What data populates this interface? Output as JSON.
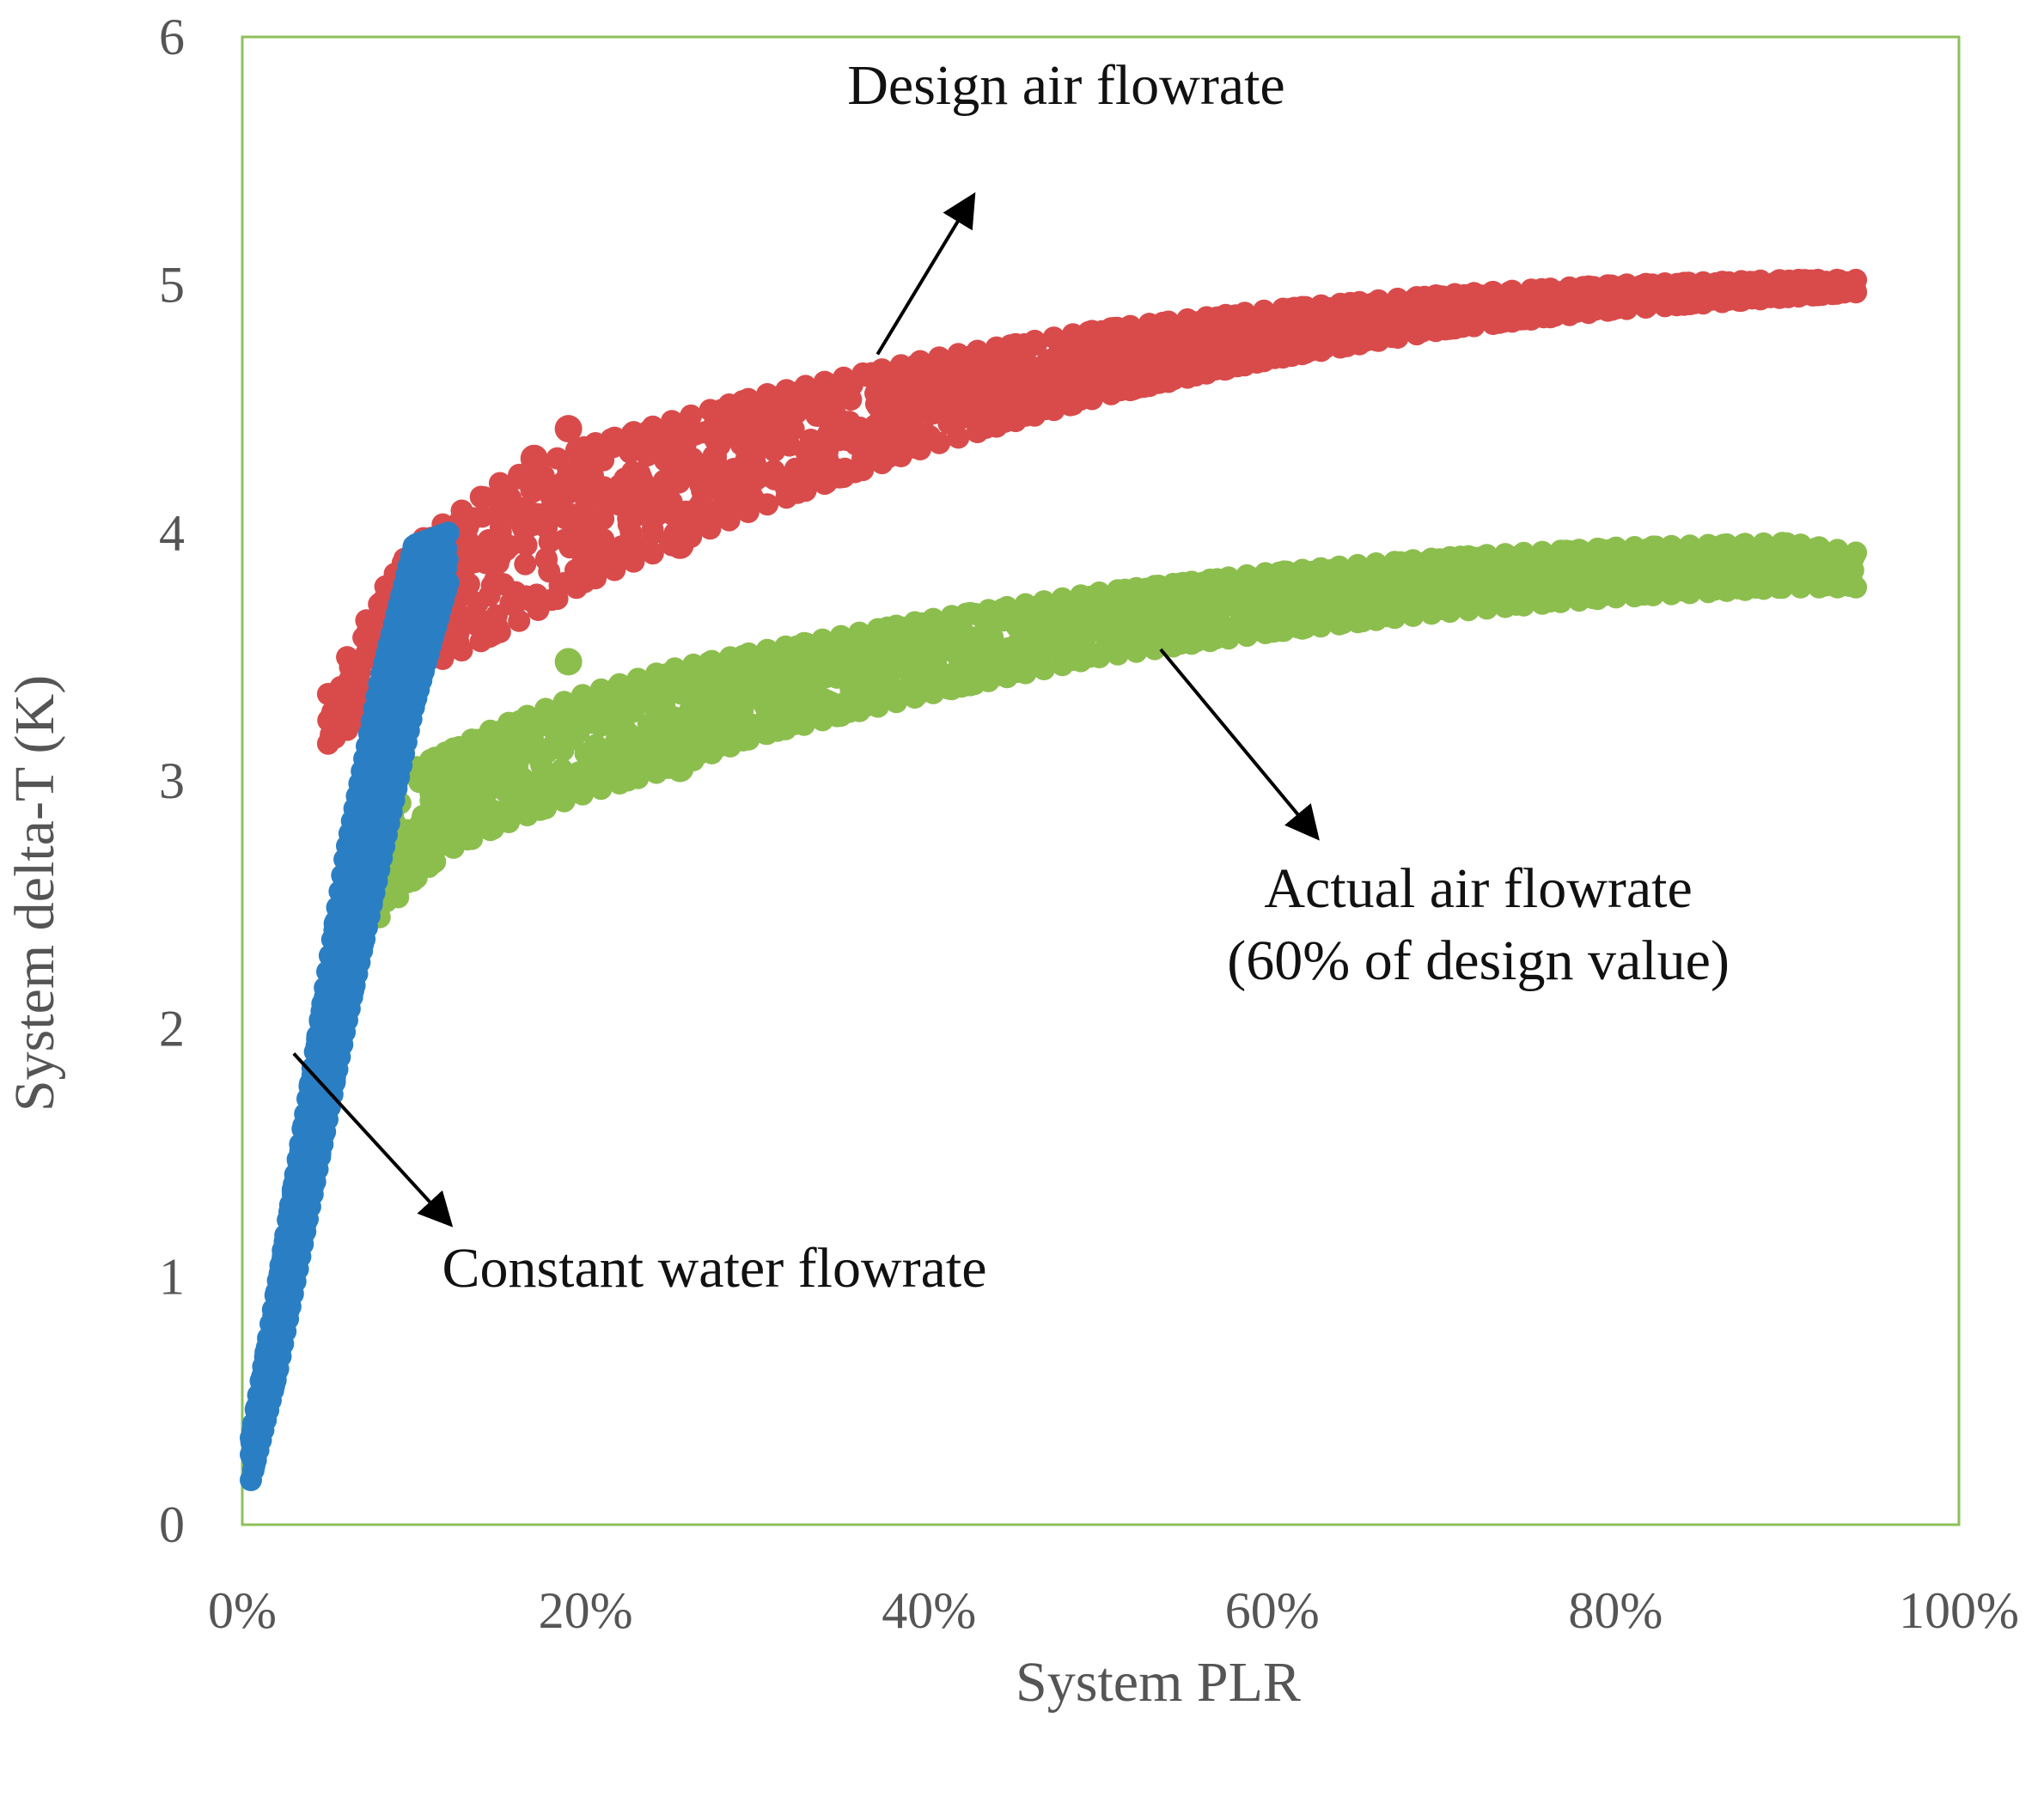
{
  "chart_data": {
    "type": "scatter",
    "title": "",
    "xlabel": "System PLR",
    "ylabel": "System delta-T (K)",
    "xlim": [
      0,
      1
    ],
    "ylim": [
      0,
      6
    ],
    "x_ticks": [
      0,
      0.2,
      0.4,
      0.6,
      0.8,
      1.0
    ],
    "x_tick_labels": [
      "0%",
      "20%",
      "40%",
      "60%",
      "80%",
      "100%"
    ],
    "y_ticks": [
      0,
      1,
      2,
      3,
      4,
      5,
      6
    ],
    "y_tick_labels": [
      "0",
      "1",
      "2",
      "3",
      "4",
      "5",
      "6"
    ],
    "plot_border_color": "#8dc05a",
    "series": [
      {
        "name": "Design air flowrate",
        "color": "#d94b4b",
        "band": {
          "x": [
            0.05,
            0.08,
            0.1,
            0.12,
            0.15,
            0.2,
            0.25,
            0.3,
            0.4,
            0.5,
            0.6,
            0.7,
            0.8,
            0.9,
            0.94
          ],
          "low": [
            3.15,
            3.3,
            3.45,
            3.5,
            3.6,
            3.8,
            3.95,
            4.1,
            4.35,
            4.55,
            4.7,
            4.82,
            4.9,
            4.95,
            4.97
          ],
          "high": [
            3.35,
            3.75,
            3.95,
            4.05,
            4.2,
            4.35,
            4.45,
            4.55,
            4.7,
            4.82,
            4.9,
            4.96,
            5.0,
            5.02,
            5.02
          ]
        },
        "outliers": [
          [
            0.19,
            4.42
          ],
          [
            0.255,
            3.95
          ],
          [
            0.17,
            4.3
          ]
        ]
      },
      {
        "name": "Actual air flowrate (60% of design value)",
        "color": "#8cbe4e",
        "band": {
          "x": [
            0.08,
            0.1,
            0.12,
            0.15,
            0.2,
            0.25,
            0.3,
            0.4,
            0.5,
            0.6,
            0.7,
            0.8,
            0.9,
            0.94
          ],
          "low": [
            2.45,
            2.6,
            2.72,
            2.82,
            2.95,
            3.05,
            3.18,
            3.35,
            3.5,
            3.6,
            3.68,
            3.74,
            3.78,
            3.78
          ],
          "high": [
            2.95,
            3.05,
            3.12,
            3.22,
            3.35,
            3.45,
            3.52,
            3.65,
            3.76,
            3.84,
            3.9,
            3.94,
            3.96,
            3.92
          ]
        },
        "outliers": [
          [
            0.19,
            3.48
          ],
          [
            0.255,
            3.05
          ]
        ]
      },
      {
        "name": "Constant water flowrate",
        "color": "#2a7fc4",
        "band": {
          "x": [
            0.005,
            0.02,
            0.04,
            0.06,
            0.08,
            0.1,
            0.12
          ],
          "low": [
            0.18,
            0.6,
            1.3,
            2.0,
            2.65,
            3.3,
            3.8
          ],
          "high": [
            0.35,
            0.95,
            1.8,
            2.7,
            3.4,
            3.95,
            4.0
          ]
        },
        "outliers": []
      }
    ],
    "annotations": [
      {
        "name": "design",
        "lines": [
          "Design air flowrate"
        ],
        "text_at": [
          0.48,
          5.73
        ],
        "arrow_from": [
          0.37,
          4.72
        ],
        "arrow_to": [
          0.425,
          5.35
        ]
      },
      {
        "name": "actual",
        "lines": [
          "Actual air flowrate",
          "(60% of design value)"
        ],
        "text_at": [
          0.72,
          2.49
        ],
        "arrow_from": [
          0.535,
          3.53
        ],
        "arrow_to": [
          0.625,
          2.78
        ]
      },
      {
        "name": "water",
        "lines": [
          "Constant water flowrate"
        ],
        "text_at": [
          0.275,
          0.96
        ],
        "arrow_from": [
          0.03,
          1.9
        ],
        "arrow_to": [
          0.12,
          1.22
        ]
      }
    ]
  }
}
